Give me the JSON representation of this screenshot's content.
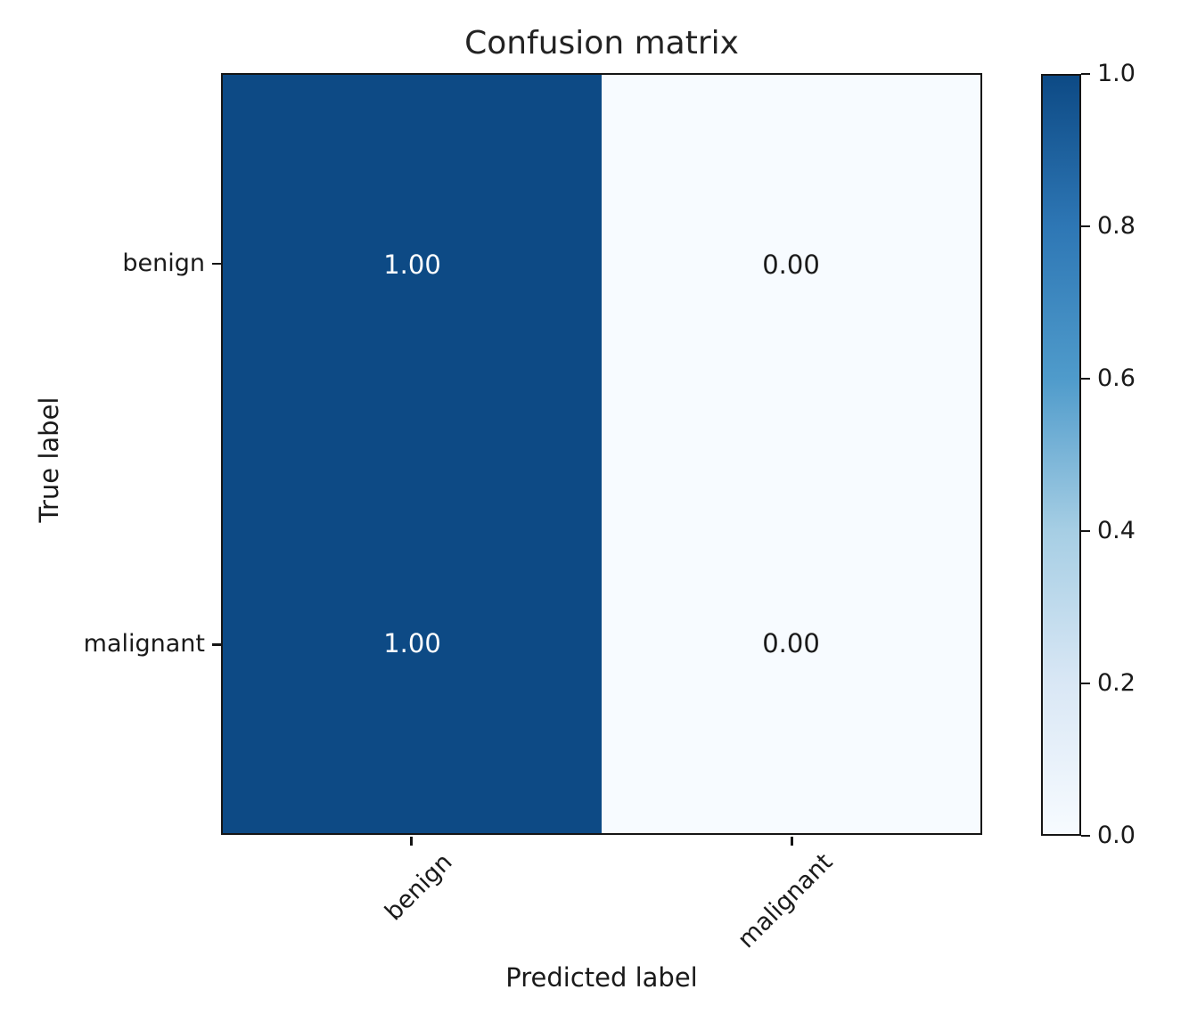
{
  "chart_data": {
    "type": "heatmap",
    "title": "Confusion matrix",
    "xlabel": "Predicted label",
    "ylabel": "True label",
    "x_categories": [
      "benign",
      "malignant"
    ],
    "y_categories": [
      "benign",
      "malignant"
    ],
    "matrix": [
      [
        1.0,
        0.0
      ],
      [
        1.0,
        0.0
      ]
    ],
    "cell_labels": [
      [
        "1.00",
        "0.00"
      ],
      [
        "1.00",
        "0.00"
      ]
    ],
    "value_range": [
      0.0,
      1.0
    ],
    "colormap": {
      "name": "Blues",
      "high": "#0d4a85",
      "low": "#f7fbff",
      "gradient_stops": [
        "#f7fbff",
        "#d9e7f5",
        "#a6cee4",
        "#4f9bcb",
        "#2e77b5",
        "#0d4a85"
      ]
    },
    "cell_text_colors": {
      "on_dark": "#ffffff",
      "on_light": "#1a1a1a"
    },
    "colorbar": {
      "tick_labels": [
        "0.0",
        "0.2",
        "0.4",
        "0.6",
        "0.8",
        "1.0"
      ],
      "min": 0.0,
      "max": 1.0,
      "position": "right"
    },
    "grid": false,
    "x_tick_rotation_deg": 45
  }
}
